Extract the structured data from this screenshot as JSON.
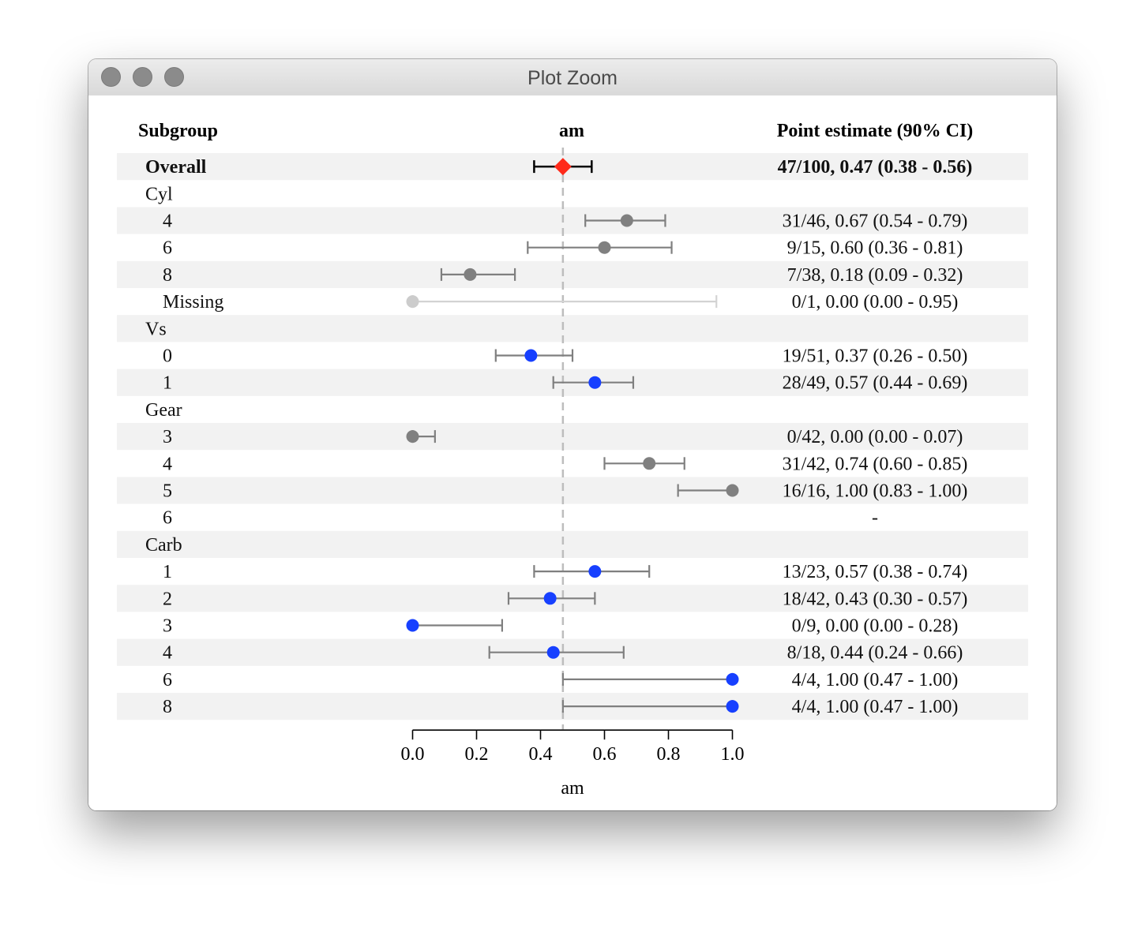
{
  "window": {
    "title": "Plot Zoom"
  },
  "headers": {
    "subgroup": "Subgroup",
    "plot": "am",
    "estimate": "Point estimate (90% CI)"
  },
  "colors": {
    "overall": "#ff2a1a",
    "grey": "#808080",
    "blue": "#1740ff",
    "missing": "#cccccc",
    "band": "#f2f2f2",
    "refline": "#bdbdbd"
  },
  "chart_data": {
    "type": "forest",
    "xlabel": "am",
    "xlim": [
      0,
      1
    ],
    "xticks": [
      "0.0",
      "0.2",
      "0.4",
      "0.6",
      "0.8",
      "1.0"
    ],
    "reference_line": 0.47,
    "rows": [
      {
        "label": "Overall",
        "kind": "overall",
        "value": 0.47,
        "lo": 0.38,
        "hi": 0.56,
        "text": "47/100, 0.47 (0.38 - 0.56)"
      },
      {
        "label": "Cyl",
        "kind": "group"
      },
      {
        "label": "4",
        "kind": "grey",
        "value": 0.67,
        "lo": 0.54,
        "hi": 0.79,
        "text": "31/46, 0.67 (0.54 - 0.79)"
      },
      {
        "label": "6",
        "kind": "grey",
        "value": 0.6,
        "lo": 0.36,
        "hi": 0.81,
        "text": "9/15, 0.60 (0.36 - 0.81)"
      },
      {
        "label": "8",
        "kind": "grey",
        "value": 0.18,
        "lo": 0.09,
        "hi": 0.32,
        "text": "7/38, 0.18 (0.09 - 0.32)"
      },
      {
        "label": "Missing",
        "kind": "missing",
        "value": 0.0,
        "lo": 0.0,
        "hi": 0.95,
        "text": "0/1, 0.00 (0.00 - 0.95)"
      },
      {
        "label": "Vs",
        "kind": "group"
      },
      {
        "label": "0",
        "kind": "blue",
        "value": 0.37,
        "lo": 0.26,
        "hi": 0.5,
        "text": "19/51, 0.37 (0.26 - 0.50)"
      },
      {
        "label": "1",
        "kind": "blue",
        "value": 0.57,
        "lo": 0.44,
        "hi": 0.69,
        "text": "28/49, 0.57 (0.44 - 0.69)"
      },
      {
        "label": "Gear",
        "kind": "group"
      },
      {
        "label": "3",
        "kind": "grey",
        "value": 0.0,
        "lo": 0.0,
        "hi": 0.07,
        "text": "0/42, 0.00 (0.00 - 0.07)"
      },
      {
        "label": "4",
        "kind": "grey",
        "value": 0.74,
        "lo": 0.6,
        "hi": 0.85,
        "text": "31/42, 0.74 (0.60 - 0.85)"
      },
      {
        "label": "5",
        "kind": "grey",
        "value": 1.0,
        "lo": 0.83,
        "hi": 1.0,
        "text": "16/16, 1.00 (0.83 - 1.00)"
      },
      {
        "label": "6",
        "kind": "empty",
        "text": "-"
      },
      {
        "label": "Carb",
        "kind": "group"
      },
      {
        "label": "1",
        "kind": "blue",
        "value": 0.57,
        "lo": 0.38,
        "hi": 0.74,
        "text": "13/23, 0.57 (0.38 - 0.74)"
      },
      {
        "label": "2",
        "kind": "blue",
        "value": 0.43,
        "lo": 0.3,
        "hi": 0.57,
        "text": "18/42, 0.43 (0.30 - 0.57)"
      },
      {
        "label": "3",
        "kind": "blue",
        "value": 0.0,
        "lo": 0.0,
        "hi": 0.28,
        "text": "0/9, 0.00 (0.00 - 0.28)"
      },
      {
        "label": "4",
        "kind": "blue",
        "value": 0.44,
        "lo": 0.24,
        "hi": 0.66,
        "text": "8/18, 0.44 (0.24 - 0.66)"
      },
      {
        "label": "6",
        "kind": "blue",
        "value": 1.0,
        "lo": 0.47,
        "hi": 1.0,
        "text": "4/4, 1.00 (0.47 - 1.00)"
      },
      {
        "label": "8",
        "kind": "blue",
        "value": 1.0,
        "lo": 0.47,
        "hi": 1.0,
        "text": "4/4, 1.00 (0.47 - 1.00)"
      }
    ]
  }
}
